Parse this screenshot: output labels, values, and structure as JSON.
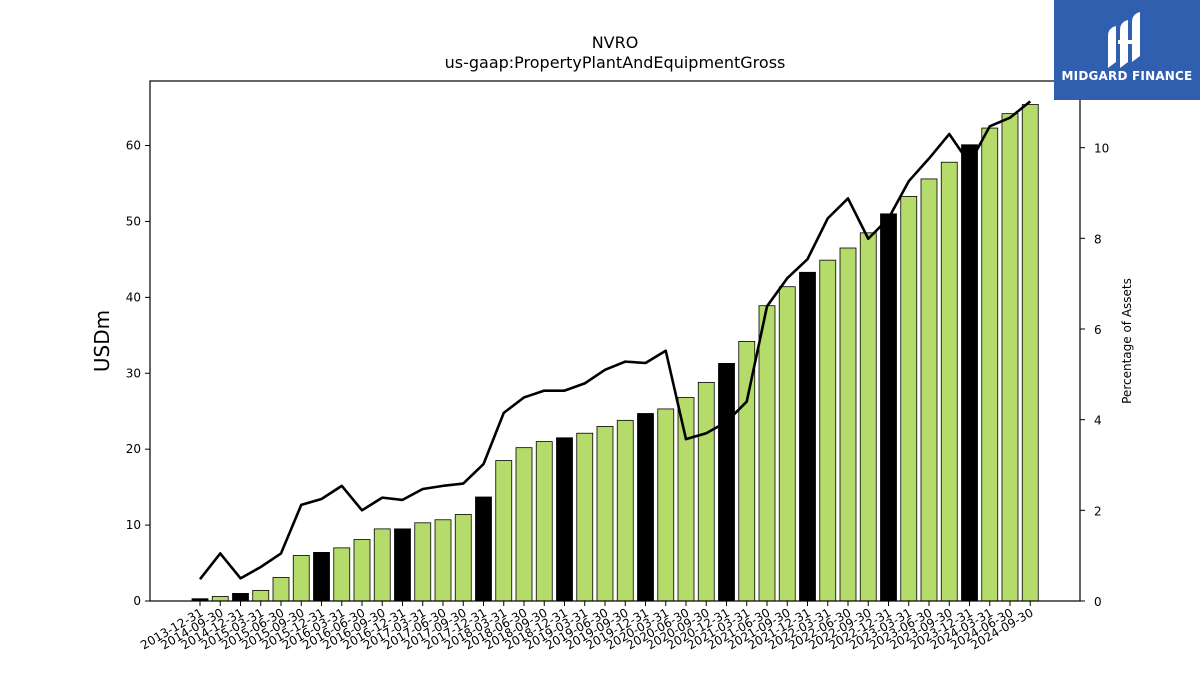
{
  "chart_data": {
    "type": "bar",
    "title": "NVRO",
    "subtitle": "us-gaap:PropertyPlantAndEquipmentGross",
    "ylabel": "USDm",
    "ylabel_right": "Percentage of Assets",
    "ylim": [
      0,
      68.5
    ],
    "ylim_right": [
      0,
      11.47
    ],
    "yticks": [
      0,
      10,
      20,
      30,
      40,
      50,
      60
    ],
    "yticks_right": [
      0,
      2,
      4,
      6,
      8,
      10
    ],
    "categories": [
      "2013-12-31",
      "2014-09-30",
      "2014-12-31",
      "2015-03-31",
      "2015-06-30",
      "2015-09-30",
      "2015-12-31",
      "2016-03-31",
      "2016-06-30",
      "2016-09-30",
      "2016-12-31",
      "2017-03-31",
      "2017-06-30",
      "2017-09-30",
      "2017-12-31",
      "2018-03-31",
      "2018-06-30",
      "2018-09-30",
      "2018-12-31",
      "2019-03-31",
      "2019-06-30",
      "2019-09-30",
      "2019-12-31",
      "2020-03-31",
      "2020-06-30",
      "2020-09-30",
      "2020-12-31",
      "2021-03-31",
      "2021-06-30",
      "2021-09-30",
      "2021-12-31",
      "2022-03-31",
      "2022-06-30",
      "2022-09-30",
      "2022-12-31",
      "2023-03-31",
      "2023-06-30",
      "2023-09-30",
      "2023-12-31",
      "2024-03-31",
      "2024-06-30",
      "2024-09-30"
    ],
    "series": [
      {
        "kind": "bar",
        "values": [
          0.3,
          0.6,
          1.0,
          1.4,
          3.1,
          6.0,
          6.4,
          7.0,
          8.1,
          9.5,
          9.5,
          10.3,
          10.7,
          11.4,
          13.7,
          18.5,
          20.2,
          21.0,
          21.5,
          22.1,
          23.0,
          23.8,
          24.7,
          25.3,
          26.8,
          28.8,
          31.3,
          34.2,
          38.9,
          41.4,
          43.3,
          44.9,
          46.5,
          48.5,
          51.0,
          53.3,
          55.6,
          57.8,
          60.1,
          62.3,
          64.2,
          65.4
        ],
        "year_end_color": "#000000",
        "color": "#b5dc6a"
      },
      {
        "kind": "line",
        "axis": "right",
        "values": [
          0.48,
          1.05,
          0.5,
          0.75,
          1.05,
          2.12,
          2.25,
          2.54,
          2.0,
          2.28,
          2.23,
          2.47,
          2.54,
          2.59,
          3.02,
          4.15,
          4.49,
          4.64,
          4.64,
          4.8,
          5.1,
          5.28,
          5.25,
          5.52,
          3.57,
          3.7,
          3.95,
          4.4,
          6.5,
          7.12,
          7.54,
          8.44,
          8.88,
          7.99,
          8.44,
          9.26,
          9.76,
          10.3,
          9.65,
          10.47,
          10.66,
          11.02
        ],
        "color": "#000000"
      }
    ]
  },
  "logo": {
    "text": "MIDGARD FINANCE",
    "bg": "#2f5fae"
  }
}
